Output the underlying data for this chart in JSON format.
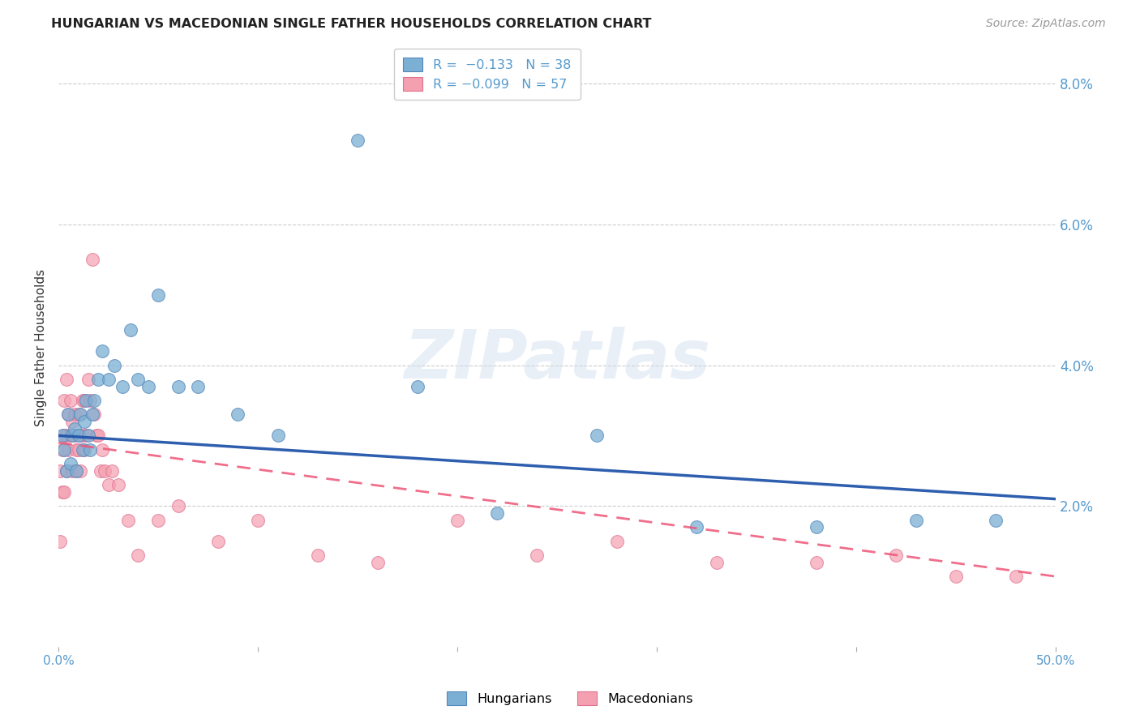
{
  "title": "HUNGARIAN VS MACEDONIAN SINGLE FATHER HOUSEHOLDS CORRELATION CHART",
  "source": "Source: ZipAtlas.com",
  "ylabel": "Single Father Households",
  "watermark": "ZIPatlas",
  "xlim": [
    0.0,
    0.5
  ],
  "ylim": [
    0.0,
    0.085
  ],
  "yticks": [
    0.02,
    0.04,
    0.06,
    0.08
  ],
  "ytick_labels": [
    "2.0%",
    "4.0%",
    "6.0%",
    "8.0%"
  ],
  "xticks": [
    0.0,
    0.1,
    0.2,
    0.3,
    0.4,
    0.5
  ],
  "xtick_labels": [
    "0.0%",
    "",
    "",
    "",
    "",
    "50.0%"
  ],
  "hungarian_color": "#7bafd4",
  "macedonian_color": "#f4a0b0",
  "hungarian_edge": "#5588bb",
  "macedonian_edge": "#e07090",
  "trend_hungarian_color": "#2255aa",
  "trend_macedonian_color": "#ee5577",
  "background_color": "#ffffff",
  "grid_color": "#cccccc",
  "tick_color": "#5599cc",
  "hun_trend_start_y": 0.03,
  "hun_trend_end_y": 0.021,
  "mac_trend_start_y": 0.029,
  "mac_trend_end_y": 0.01,
  "hungarian_x": [
    0.002,
    0.003,
    0.004,
    0.005,
    0.006,
    0.007,
    0.008,
    0.009,
    0.01,
    0.011,
    0.012,
    0.013,
    0.014,
    0.015,
    0.016,
    0.017,
    0.018,
    0.02,
    0.022,
    0.025,
    0.028,
    0.032,
    0.036,
    0.04,
    0.045,
    0.05,
    0.06,
    0.07,
    0.09,
    0.11,
    0.15,
    0.18,
    0.22,
    0.27,
    0.32,
    0.38,
    0.43,
    0.47
  ],
  "hungarian_y": [
    0.03,
    0.028,
    0.025,
    0.033,
    0.026,
    0.03,
    0.031,
    0.025,
    0.03,
    0.033,
    0.028,
    0.032,
    0.035,
    0.03,
    0.028,
    0.033,
    0.035,
    0.038,
    0.042,
    0.038,
    0.04,
    0.037,
    0.045,
    0.038,
    0.037,
    0.05,
    0.037,
    0.037,
    0.033,
    0.03,
    0.072,
    0.037,
    0.019,
    0.03,
    0.017,
    0.017,
    0.018,
    0.018
  ],
  "macedonian_x": [
    0.001,
    0.001,
    0.002,
    0.002,
    0.003,
    0.003,
    0.003,
    0.004,
    0.004,
    0.004,
    0.005,
    0.005,
    0.006,
    0.006,
    0.007,
    0.007,
    0.008,
    0.008,
    0.009,
    0.009,
    0.01,
    0.01,
    0.011,
    0.011,
    0.012,
    0.012,
    0.013,
    0.013,
    0.014,
    0.015,
    0.016,
    0.017,
    0.018,
    0.019,
    0.02,
    0.021,
    0.022,
    0.023,
    0.025,
    0.027,
    0.03,
    0.035,
    0.04,
    0.05,
    0.06,
    0.08,
    0.1,
    0.13,
    0.16,
    0.2,
    0.24,
    0.28,
    0.33,
    0.38,
    0.42,
    0.45,
    0.48
  ],
  "macedonian_y": [
    0.025,
    0.015,
    0.022,
    0.028,
    0.03,
    0.022,
    0.035,
    0.03,
    0.025,
    0.038,
    0.033,
    0.028,
    0.03,
    0.035,
    0.032,
    0.025,
    0.033,
    0.03,
    0.028,
    0.025,
    0.033,
    0.028,
    0.03,
    0.025,
    0.035,
    0.03,
    0.028,
    0.035,
    0.03,
    0.038,
    0.035,
    0.055,
    0.033,
    0.03,
    0.03,
    0.025,
    0.028,
    0.025,
    0.023,
    0.025,
    0.023,
    0.018,
    0.013,
    0.018,
    0.02,
    0.015,
    0.018,
    0.013,
    0.012,
    0.018,
    0.013,
    0.015,
    0.012,
    0.012,
    0.013,
    0.01,
    0.01
  ]
}
